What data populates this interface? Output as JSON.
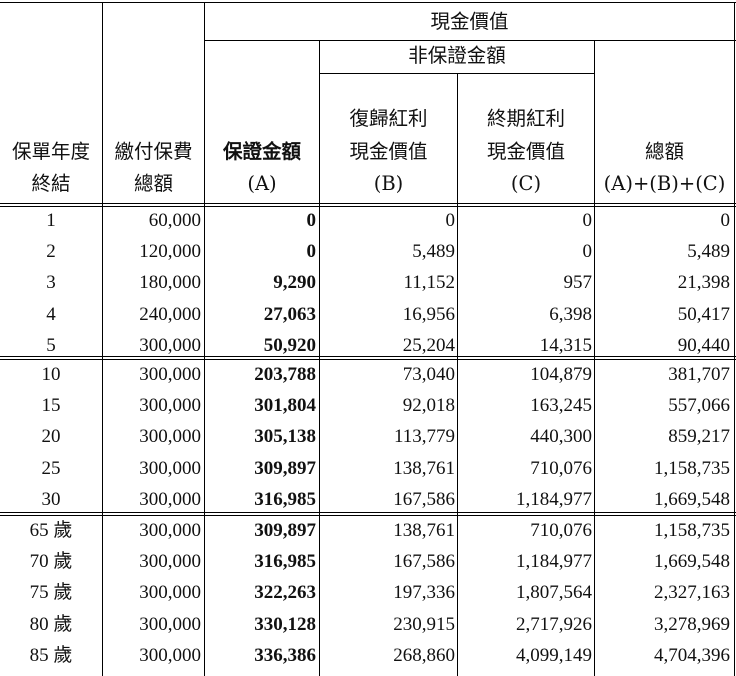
{
  "header": {
    "cash_value": "現金價值",
    "non_guaranteed": "非保證金額",
    "col_year": [
      "保單年度",
      "終結"
    ],
    "col_premium": [
      "繳付保費",
      "總額"
    ],
    "col_guaranteed": [
      "保證金額",
      "(A)"
    ],
    "col_reversionary": [
      "復歸紅利",
      "現金價值",
      "(B)"
    ],
    "col_terminal": [
      "終期紅利",
      "現金價值",
      "(C)"
    ],
    "col_total": [
      "總額",
      "(A)+(B)+(C)"
    ]
  },
  "groups": [
    {
      "rows": [
        [
          "1",
          "60,000",
          "0",
          "0",
          "0",
          "0"
        ],
        [
          "2",
          "120,000",
          "0",
          "5,489",
          "0",
          "5,489"
        ],
        [
          "3",
          "180,000",
          "9,290",
          "11,152",
          "957",
          "21,398"
        ],
        [
          "4",
          "240,000",
          "27,063",
          "16,956",
          "6,398",
          "50,417"
        ],
        [
          "5",
          "300,000",
          "50,920",
          "25,204",
          "14,315",
          "90,440"
        ]
      ]
    },
    {
      "rows": [
        [
          "10",
          "300,000",
          "203,788",
          "73,040",
          "104,879",
          "381,707"
        ],
        [
          "15",
          "300,000",
          "301,804",
          "92,018",
          "163,245",
          "557,066"
        ],
        [
          "20",
          "300,000",
          "305,138",
          "113,779",
          "440,300",
          "859,217"
        ],
        [
          "25",
          "300,000",
          "309,897",
          "138,761",
          "710,076",
          "1,158,735"
        ],
        [
          "30",
          "300,000",
          "316,985",
          "167,586",
          "1,184,977",
          "1,669,548"
        ]
      ]
    },
    {
      "rows": [
        [
          "65 歲",
          "300,000",
          "309,897",
          "138,761",
          "710,076",
          "1,158,735"
        ],
        [
          "70 歲",
          "300,000",
          "316,985",
          "167,586",
          "1,184,977",
          "1,669,548"
        ],
        [
          "75 歲",
          "300,000",
          "322,263",
          "197,336",
          "1,807,564",
          "2,327,163"
        ],
        [
          "80 歲",
          "300,000",
          "330,128",
          "230,915",
          "2,717,926",
          "3,278,969"
        ],
        [
          "85 歲",
          "300,000",
          "336,386",
          "268,860",
          "4,099,149",
          "4,704,396"
        ]
      ]
    }
  ]
}
